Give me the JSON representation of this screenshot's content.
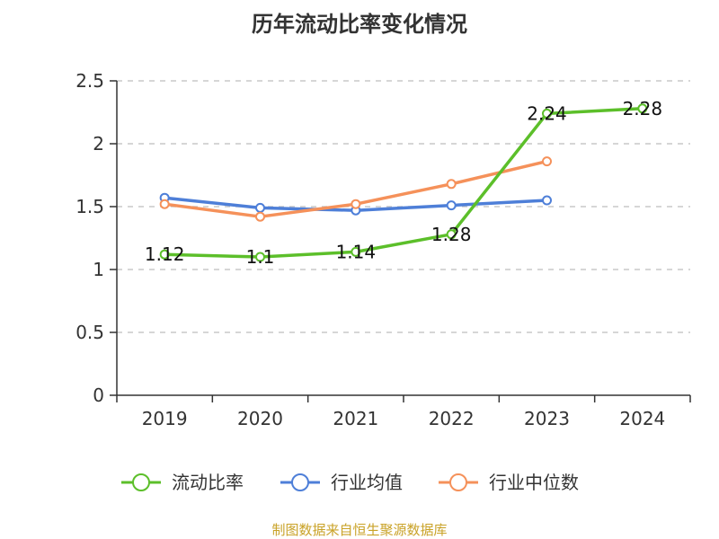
{
  "chart_data": {
    "type": "line",
    "title": "历年流动比率变化情况",
    "categories": [
      "2019",
      "2020",
      "2021",
      "2022",
      "2023",
      "2024"
    ],
    "ylim": [
      0,
      2.5
    ],
    "yticks": [
      "0",
      "0.5",
      "1",
      "1.5",
      "2",
      "2.5"
    ],
    "ytick_values": [
      0,
      0.5,
      1,
      1.5,
      2,
      2.5
    ],
    "grid": true,
    "legend_position": "bottom",
    "series": [
      {
        "name": "流动比率",
        "color": "#5cbf2a",
        "values": [
          1.12,
          1.1,
          1.14,
          1.28,
          2.24,
          2.28
        ],
        "labels": [
          "1.12",
          "1.1",
          "1.14",
          "1.28",
          "2.24",
          "2.28"
        ]
      },
      {
        "name": "行业均值",
        "color": "#4e7fd8",
        "values": [
          1.57,
          1.49,
          1.47,
          1.51,
          1.55,
          null
        ]
      },
      {
        "name": "行业中位数",
        "color": "#f5915a",
        "values": [
          1.52,
          1.42,
          1.52,
          1.68,
          1.86,
          null
        ]
      }
    ],
    "source": "制图数据来自恒生聚源数据库"
  }
}
